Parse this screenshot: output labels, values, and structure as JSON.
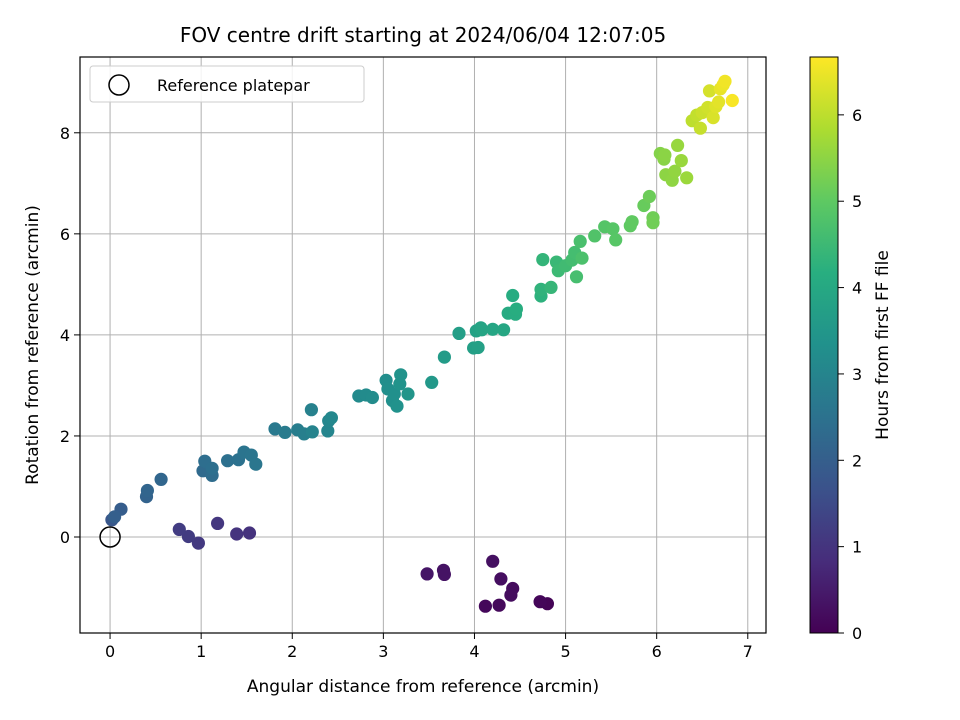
{
  "chart_data": {
    "type": "scatter",
    "title": "FOV centre drift starting at 2024/06/04 12:07:05",
    "xlabel": "Angular distance from reference (arcmin)",
    "ylabel": "Rotation from reference (arcmin)",
    "xlim": [
      -0.33,
      7.2
    ],
    "ylim": [
      -1.9,
      9.5
    ],
    "xticks": [
      0,
      1,
      2,
      3,
      4,
      5,
      6,
      7
    ],
    "xtick_labels": [
      "0",
      "1",
      "2",
      "3",
      "4",
      "5",
      "6",
      "7"
    ],
    "yticks": [
      0,
      2,
      4,
      6,
      8
    ],
    "ytick_labels": [
      "0",
      "2",
      "4",
      "6",
      "8"
    ],
    "grid": true,
    "legend": {
      "placement": "upper-left",
      "entries": [
        "Reference platepar"
      ]
    },
    "reference_point": {
      "x": 0,
      "y": 0,
      "marker": "open-circle",
      "color": "#000000"
    },
    "colorbar": {
      "label": "Hours from first FF file",
      "range": [
        0,
        6.67
      ],
      "ticks": [
        0,
        1,
        2,
        3,
        4,
        5,
        6
      ],
      "tick_labels": [
        "0",
        "1",
        "2",
        "3",
        "4",
        "5",
        "6"
      ],
      "colormap": "viridis"
    },
    "points": [
      [
        4.8,
        -1.32,
        0.05
      ],
      [
        4.72,
        -1.28,
        0.1
      ],
      [
        4.12,
        -1.37,
        0.12
      ],
      [
        4.27,
        -1.35,
        0.15
      ],
      [
        4.42,
        -1.02,
        0.2
      ],
      [
        4.4,
        -1.15,
        0.22
      ],
      [
        4.29,
        -0.83,
        0.25
      ],
      [
        4.2,
        -0.48,
        0.28
      ],
      [
        3.66,
        -0.66,
        0.32
      ],
      [
        3.67,
        -0.74,
        0.34
      ],
      [
        3.48,
        -0.73,
        0.38
      ],
      [
        1.53,
        0.08,
        0.95
      ],
      [
        1.39,
        0.06,
        1.0
      ],
      [
        1.18,
        0.27,
        1.05
      ],
      [
        0.97,
        -0.12,
        1.1
      ],
      [
        0.86,
        0.01,
        1.15
      ],
      [
        0.76,
        0.15,
        1.18
      ],
      [
        0.02,
        0.34,
        1.8
      ],
      [
        0.12,
        0.55,
        1.95
      ],
      [
        0.05,
        0.4,
        2.0
      ],
      [
        0.4,
        0.8,
        2.1
      ],
      [
        0.41,
        0.92,
        2.15
      ],
      [
        0.56,
        1.14,
        2.2
      ],
      [
        1.02,
        1.31,
        2.3
      ],
      [
        1.12,
        1.22,
        2.35
      ],
      [
        1.04,
        1.5,
        2.4
      ],
      [
        1.12,
        1.36,
        2.42
      ],
      [
        1.29,
        1.51,
        2.45
      ],
      [
        1.41,
        1.53,
        2.48
      ],
      [
        1.47,
        1.68,
        2.55
      ],
      [
        1.55,
        1.62,
        2.58
      ],
      [
        1.6,
        1.44,
        2.6
      ],
      [
        1.81,
        2.14,
        2.7
      ],
      [
        1.92,
        2.07,
        2.75
      ],
      [
        2.06,
        2.12,
        2.8
      ],
      [
        2.13,
        2.04,
        2.85
      ],
      [
        2.21,
        2.52,
        2.9
      ],
      [
        2.22,
        2.08,
        2.95
      ],
      [
        2.39,
        2.1,
        3.0
      ],
      [
        2.4,
        2.3,
        3.05
      ],
      [
        2.43,
        2.36,
        3.08
      ],
      [
        2.73,
        2.79,
        3.15
      ],
      [
        2.81,
        2.81,
        3.18
      ],
      [
        2.88,
        2.76,
        3.2
      ],
      [
        3.03,
        3.1,
        3.25
      ],
      [
        3.05,
        2.93,
        3.28
      ],
      [
        3.1,
        2.7,
        3.3
      ],
      [
        3.12,
        2.83,
        3.32
      ],
      [
        3.15,
        2.59,
        3.35
      ],
      [
        3.18,
        3.03,
        3.38
      ],
      [
        3.19,
        3.21,
        3.4
      ],
      [
        3.27,
        2.83,
        3.45
      ],
      [
        3.53,
        3.06,
        3.55
      ],
      [
        3.67,
        3.56,
        3.62
      ],
      [
        3.83,
        4.03,
        3.7
      ],
      [
        3.99,
        3.74,
        3.75
      ],
      [
        4.04,
        3.75,
        3.78
      ],
      [
        4.02,
        4.08,
        3.8
      ],
      [
        4.07,
        4.14,
        3.85
      ],
      [
        4.08,
        4.1,
        3.88
      ],
      [
        4.2,
        4.11,
        3.92
      ],
      [
        4.32,
        4.1,
        3.95
      ],
      [
        4.37,
        4.43,
        4.05
      ],
      [
        4.42,
        4.78,
        4.1
      ],
      [
        4.45,
        4.41,
        4.12
      ],
      [
        4.46,
        4.51,
        4.15
      ],
      [
        4.73,
        4.77,
        4.25
      ],
      [
        4.73,
        4.9,
        4.3
      ],
      [
        4.75,
        5.49,
        4.35
      ],
      [
        4.84,
        4.94,
        4.4
      ],
      [
        4.9,
        5.44,
        4.45
      ],
      [
        4.92,
        5.27,
        4.5
      ],
      [
        5.0,
        5.37,
        4.55
      ],
      [
        5.07,
        5.48,
        4.6
      ],
      [
        5.1,
        5.63,
        4.62
      ],
      [
        5.12,
        5.15,
        4.65
      ],
      [
        5.16,
        5.85,
        4.7
      ],
      [
        5.18,
        5.52,
        4.72
      ],
      [
        5.32,
        5.96,
        4.8
      ],
      [
        5.43,
        6.14,
        4.85
      ],
      [
        5.52,
        6.1,
        4.88
      ],
      [
        5.55,
        5.88,
        4.9
      ],
      [
        5.71,
        6.16,
        5.0
      ],
      [
        5.73,
        6.24,
        5.02
      ],
      [
        5.86,
        6.56,
        5.1
      ],
      [
        5.92,
        6.74,
        5.15
      ],
      [
        5.96,
        6.32,
        5.18
      ],
      [
        5.96,
        6.22,
        5.2
      ],
      [
        6.04,
        7.59,
        5.4
      ],
      [
        6.08,
        7.48,
        5.45
      ],
      [
        6.09,
        7.56,
        5.48
      ],
      [
        6.1,
        7.17,
        5.5
      ],
      [
        6.17,
        7.06,
        5.52
      ],
      [
        6.2,
        7.24,
        5.55
      ],
      [
        6.23,
        7.75,
        5.6
      ],
      [
        6.27,
        7.45,
        5.62
      ],
      [
        6.33,
        7.11,
        5.65
      ],
      [
        6.39,
        8.24,
        6.0
      ],
      [
        6.44,
        8.35,
        6.05
      ],
      [
        6.48,
        8.09,
        6.1
      ],
      [
        6.5,
        8.4,
        6.15
      ],
      [
        6.56,
        8.5,
        6.2
      ],
      [
        6.58,
        8.83,
        6.25
      ],
      [
        6.62,
        8.3,
        6.3
      ],
      [
        6.65,
        8.52,
        6.35
      ],
      [
        6.68,
        8.61,
        6.4
      ],
      [
        6.7,
        8.87,
        6.45
      ],
      [
        6.73,
        8.95,
        6.5
      ],
      [
        6.75,
        9.02,
        6.55
      ],
      [
        6.83,
        8.64,
        6.62
      ]
    ]
  }
}
